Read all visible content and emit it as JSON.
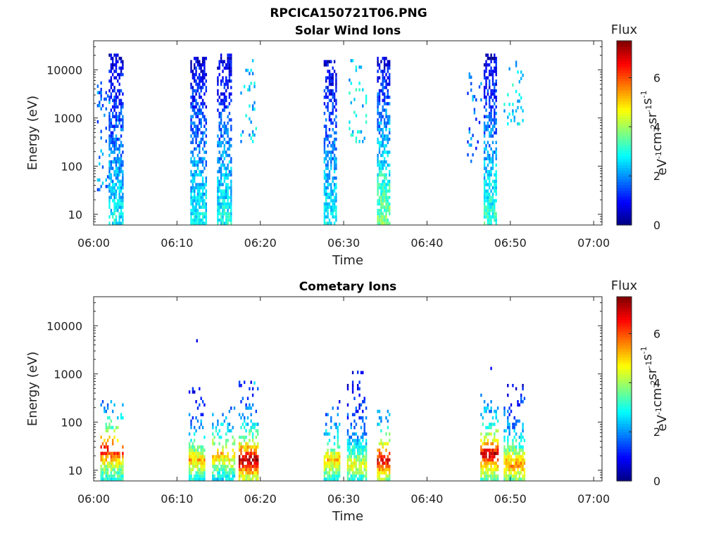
{
  "figure_title": "RPCICA150721T06.PNG",
  "chart_data": [
    {
      "type": "heatmap",
      "title": "Solar Wind Ions",
      "xlabel": "Time",
      "ylabel": "Energy (eV)",
      "x_ticks": [
        "06:00",
        "06:10",
        "06:20",
        "06:30",
        "06:40",
        "06:50",
        "07:00"
      ],
      "x_range_minutes": [
        0,
        61
      ],
      "y_scale": "log",
      "y_ticks": [
        "10",
        "100",
        "1000",
        "10000"
      ],
      "y_range": [
        6,
        40000
      ],
      "colorbar": {
        "label": "Flux",
        "unit": "eV-1cm-2sr-1s-1",
        "ticks": [
          "0",
          "2",
          "4",
          "6"
        ],
        "range": [
          0,
          7.5
        ],
        "colormap": "jet"
      },
      "bursts": [
        {
          "t_start": 1.8,
          "t_end": 3.6,
          "e_min": 6,
          "e_max": 20000,
          "low_energy_flux": 2.8,
          "high_energy_flux": 0.6
        },
        {
          "t_start": 11.6,
          "t_end": 13.4,
          "e_min": 6,
          "e_max": 18000,
          "low_energy_flux": 2.8,
          "high_energy_flux": 0.7
        },
        {
          "t_start": 14.8,
          "t_end": 16.4,
          "e_min": 6,
          "e_max": 20000,
          "low_energy_flux": 2.9,
          "high_energy_flux": 0.6
        },
        {
          "t_start": 27.6,
          "t_end": 29.0,
          "e_min": 6,
          "e_max": 15000,
          "low_energy_flux": 2.9,
          "high_energy_flux": 0.6
        },
        {
          "t_start": 34.0,
          "t_end": 35.6,
          "e_min": 6,
          "e_max": 18000,
          "low_energy_flux": 3.8,
          "high_energy_flux": 0.7
        },
        {
          "t_start": 46.8,
          "t_end": 48.4,
          "e_min": 6,
          "e_max": 20000,
          "low_energy_flux": 3.2,
          "high_energy_flux": 0.6
        }
      ],
      "scatter_regions": [
        {
          "t_start": 0.4,
          "t_end": 1.8,
          "e_min": 30,
          "e_max": 5000,
          "flux": 1.8
        },
        {
          "t_start": 17.6,
          "t_end": 19.4,
          "e_min": 300,
          "e_max": 15000,
          "flux": 2.4
        },
        {
          "t_start": 30.6,
          "t_end": 32.8,
          "e_min": 300,
          "e_max": 15000,
          "flux": 2.6
        },
        {
          "t_start": 49.2,
          "t_end": 51.6,
          "e_min": 600,
          "e_max": 15000,
          "flux": 2.6
        },
        {
          "t_start": 44.8,
          "t_end": 46.6,
          "e_min": 100,
          "e_max": 8000,
          "flux": 1.8
        }
      ]
    },
    {
      "type": "heatmap",
      "title": "Cometary Ions",
      "xlabel": "Time",
      "ylabel": "Energy (eV)",
      "x_ticks": [
        "06:00",
        "06:10",
        "06:20",
        "06:30",
        "06:40",
        "06:50",
        "07:00"
      ],
      "x_range_minutes": [
        0,
        61
      ],
      "y_scale": "log",
      "y_ticks": [
        "10",
        "100",
        "1000",
        "10000"
      ],
      "y_range": [
        6,
        40000
      ],
      "colorbar": {
        "label": "Flux",
        "unit": "eV-1cm-2sr-1s-1",
        "ticks": [
          "0",
          "2",
          "4",
          "6"
        ],
        "range": [
          0,
          7.5
        ],
        "colormap": "jet"
      },
      "bursts": [
        {
          "t_start": 0.8,
          "t_end": 3.6,
          "e_min": 6,
          "e_max": 300,
          "peak_flux": 6.2,
          "peak_energy": 25
        },
        {
          "t_start": 11.4,
          "t_end": 13.2,
          "e_min": 6,
          "e_max": 500,
          "peak_flux": 4.6,
          "peak_energy": 15
        },
        {
          "t_start": 14.2,
          "t_end": 16.8,
          "e_min": 6,
          "e_max": 200,
          "peak_flux": 4.8,
          "peak_energy": 20
        },
        {
          "t_start": 17.4,
          "t_end": 19.6,
          "e_min": 6,
          "e_max": 700,
          "peak_flux": 6.8,
          "peak_energy": 15
        },
        {
          "t_start": 27.6,
          "t_end": 29.4,
          "e_min": 6,
          "e_max": 250,
          "peak_flux": 4.6,
          "peak_energy": 15
        },
        {
          "t_start": 30.4,
          "t_end": 32.6,
          "e_min": 6,
          "e_max": 1000,
          "peak_flux": 4.0,
          "peak_energy": 12
        },
        {
          "t_start": 34.0,
          "t_end": 35.6,
          "e_min": 6,
          "e_max": 200,
          "peak_flux": 6.4,
          "peak_energy": 15
        },
        {
          "t_start": 46.4,
          "t_end": 48.6,
          "e_min": 6,
          "e_max": 350,
          "peak_flux": 6.6,
          "peak_energy": 20
        },
        {
          "t_start": 49.2,
          "t_end": 51.8,
          "e_min": 6,
          "e_max": 600,
          "peak_flux": 5.0,
          "peak_energy": 12
        }
      ],
      "isolated_points": [
        {
          "t": 12.3,
          "e": 4500,
          "flux": 0.8
        },
        {
          "t": 47.6,
          "e": 1200,
          "flux": 1.0
        },
        {
          "t": 19.2,
          "e": 600,
          "flux": 2.6
        },
        {
          "t": 31.6,
          "e": 1000,
          "flux": 1.2
        }
      ]
    }
  ]
}
